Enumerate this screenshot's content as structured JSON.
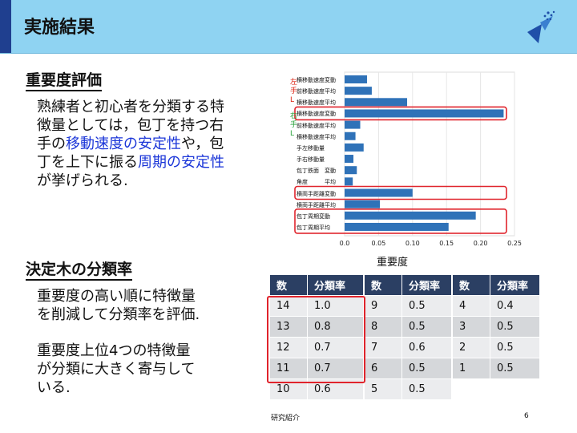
{
  "header": {
    "title": "実施結果"
  },
  "importance": {
    "title": "重要度評価",
    "paragraph": [
      {
        "text": "熟練者と初心者を分類する",
        "hl": false
      },
      {
        "text": "特徴量としては，包丁を持",
        "hl": false
      },
      {
        "text": "つ右手の",
        "hl": false
      },
      {
        "text": "移動速度の安定性",
        "hl": true
      },
      {
        "text": "や，包丁を上下に振る",
        "hl": false
      },
      {
        "text": "周期",
        "hl": true
      },
      {
        "text": "の安定性",
        "hl": true
      },
      {
        "text": "が挙げられる.",
        "hl": false
      }
    ]
  },
  "chart_data": {
    "type": "bar",
    "orientation": "horizontal",
    "xlabel": "重要度",
    "xlim": [
      0,
      0.25
    ],
    "xticks": [
      "0.0",
      "0.05",
      "0.10",
      "0.15",
      "0.20",
      "0.25"
    ],
    "categories": [
      "横移動速度変動",
      "前移動速度平均",
      "横移動速度平均",
      "横移動速度変動",
      "前移動速度平均",
      "横移動速度平均",
      "手左移動量",
      "手右移動量",
      "包丁鉄面　変動",
      "角度　　　平均",
      "横両手距離変動",
      "横両手距離平均",
      "包丁周期変動",
      "包丁周期平均"
    ],
    "values": [
      0.033,
      0.04,
      0.092,
      0.234,
      0.023,
      0.016,
      0.028,
      0.013,
      0.018,
      0.012,
      0.1,
      0.052,
      0.193,
      0.153
    ],
    "color": "#2f72b8",
    "group_markers": [
      {
        "text": "左\n手\nL",
        "color": "#d21"
      },
      {
        "text": "右\n手\nL",
        "color": "#2aa33c"
      }
    ],
    "highlight_rows": [
      [
        3
      ],
      [
        10
      ],
      [
        12,
        13
      ]
    ]
  },
  "tree": {
    "title": "決定木の分類率",
    "p1": [
      "重要度の高い順に特徴量",
      "を削減して分類率を評価."
    ],
    "p2": [
      "重要度上位4つの特徴量",
      "が分類に大きく寄与して",
      "いる."
    ]
  },
  "tables": [
    {
      "headers": [
        "数",
        "分類率"
      ],
      "rows": [
        [
          "14",
          "1.0"
        ],
        [
          "13",
          "0.8"
        ],
        [
          "12",
          "0.7"
        ],
        [
          "11",
          "0.7"
        ],
        [
          "10",
          "0.6"
        ]
      ]
    },
    {
      "headers": [
        "数",
        "分類率"
      ],
      "rows": [
        [
          "9",
          "0.5"
        ],
        [
          "8",
          "0.5"
        ],
        [
          "7",
          "0.6"
        ],
        [
          "6",
          "0.5"
        ],
        [
          "5",
          "0.5"
        ]
      ]
    },
    {
      "headers": [
        "数",
        "分類率"
      ],
      "rows": [
        [
          "4",
          "0.4"
        ],
        [
          "3",
          "0.5"
        ],
        [
          "2",
          "0.5"
        ],
        [
          "1",
          "0.5"
        ]
      ]
    }
  ],
  "footer": {
    "left": "研究紹介",
    "page": "6"
  },
  "colors": {
    "header_bg": "#8fd3f2",
    "accent": "#1f3f8f",
    "highlight_text": "#1a35d8",
    "box": "#e0242c",
    "table_header": "#2b3f63"
  },
  "icons": {
    "logo": "university-logo-icon"
  }
}
